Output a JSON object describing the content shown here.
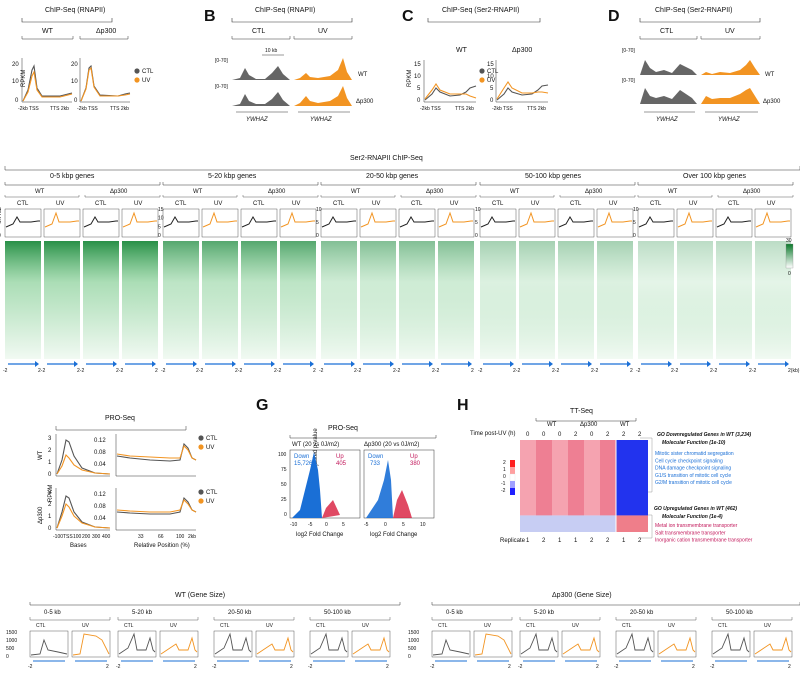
{
  "panels": {
    "B": "B",
    "C": "C",
    "D": "D",
    "G": "G",
    "H": "H"
  },
  "colors": {
    "ctl": "#555555",
    "uv": "#f29422",
    "heat": "#2e9a4c",
    "down": "#1a6fd6",
    "up": "#d81b3c",
    "go_blue": "#1a6fd6",
    "go_red": "#c2185b"
  },
  "panelA": {
    "title": "ChIP-Seq  (RNAPII)",
    "wt": "WT",
    "dp300": "Δp300",
    "ylabel": "RPKM",
    "yticks": [
      "20",
      "10",
      "0"
    ],
    "yticks2": [
      "20",
      "10",
      "0"
    ],
    "xlab": "-2kb TSS",
    "xlab2": "TTS  2kb",
    "legend": [
      "CTL",
      "UV"
    ]
  },
  "panelB": {
    "title": "ChIP-Seq   (RNAPII)",
    "ctl": "CTL",
    "uv": "UV",
    "scale": "10 kb",
    "range": "[0-70]",
    "range2": "[0-70]",
    "wt": "WT",
    "dp300": "Δp300",
    "gene": "YWHAZ"
  },
  "panelC": {
    "title": "ChIP-Seq (Ser2-RNAPII)",
    "wt": "WT",
    "dp300": "Δp300",
    "ylabel": "RPKM",
    "yticks": [
      "15",
      "10",
      "5",
      "0"
    ],
    "yticks2": [
      "15",
      "10",
      "5",
      "0"
    ],
    "xlab": "-2kb TSS",
    "xlab2": "TTS  2kb",
    "legend": [
      "CTL",
      "UV"
    ]
  },
  "panelD": {
    "title": "ChIP-Seq  (Ser2-RNAPII)",
    "ctl": "CTL",
    "uv": "UV",
    "range": "[0-70]",
    "range2": "[0-70]",
    "wt": "WT",
    "dp300": "Δp300",
    "gene": "YWHAZ"
  },
  "panelE": {
    "title": "Ser2-RNAPII ChIP-Seq",
    "groups": [
      "0-5 kbp genes",
      "5-20 kbp genes",
      "20-50 kbp genes",
      "50-100 kbp genes",
      "Over 100 kbp genes"
    ],
    "wt": "WT",
    "dp300": "Δp300",
    "ctl": "CTL",
    "uv": "UV",
    "ylabel": "RPKM",
    "yticks": [
      [
        "8",
        "4",
        "0"
      ],
      [
        "15",
        "10",
        "5",
        "0"
      ],
      [
        "10",
        "5",
        "0"
      ],
      [
        "10",
        "5",
        "0"
      ],
      [
        "10",
        "5",
        "0"
      ]
    ],
    "colorbar": [
      "30",
      "0"
    ],
    "x_left": "-2",
    "x_right": "2",
    "x_pair": "2-2",
    "x_unit": "2(kb)"
  },
  "panelF": {
    "title": "PRO-Seq",
    "wt": "WT",
    "dp300": "Δp300",
    "ylabel": "RPKM",
    "yticks_l": [
      "3",
      "2",
      "1",
      "0"
    ],
    "yticks_l2": [
      "3",
      "2",
      "1",
      "0"
    ],
    "yticks_r": [
      "0.12",
      "0.08",
      "0.04"
    ],
    "yticks_r2": [
      "0.12",
      "0.08",
      "0.04"
    ],
    "xticks_l": [
      "-100",
      "TSS",
      "100",
      "200",
      "300",
      "400"
    ],
    "xticks_r": [
      "33",
      "66",
      "100",
      "2kb"
    ],
    "xlabel_l": "Bases",
    "xlabel_r": "Relative Position (%)",
    "legend": [
      "CTL",
      "UV"
    ]
  },
  "panelG": {
    "title": "PRO-Seq",
    "sub1": "WT (20 vs 0J/m2)",
    "sub2": "Δp300 (20 vs 0J/m2)",
    "down": "Down",
    "up": "Up",
    "wt_down": "15,726",
    "wt_up": "405",
    "dp_down": "733",
    "dp_up": "380",
    "ylabel": "-log10 Adjusted p-value",
    "yticks": [
      "100",
      "75",
      "50",
      "25",
      "0"
    ],
    "xticks1": [
      "-10",
      "-5",
      "0",
      "5"
    ],
    "xticks2": [
      "-5",
      "0",
      "5",
      "10"
    ],
    "xlabel": "log2 Fold Change"
  },
  "panelH": {
    "title": "TT-Seq",
    "wt": "WT",
    "dp300": "Δp300",
    "wt2": "WT",
    "time_label": "Time post-UV (h)",
    "times": [
      "0",
      "0",
      "0",
      "2",
      "0",
      "2",
      "2",
      "2"
    ],
    "rep_label": "Replicate",
    "reps": [
      "1",
      "2",
      "1",
      "1",
      "2",
      "2",
      "1",
      "2"
    ],
    "cbar": [
      "2",
      "1",
      "0",
      "-1",
      "-2"
    ],
    "go_down_title1": "GO Downregulated Genes in WT (3,234)",
    "go_down_title2": "Molecular Function (1e-10)",
    "go_down": [
      "Mitotic sister chromatid segregation",
      "Cell cycle checkpoint signaling",
      "DNA damage checkpoint signaling",
      "G1/S transition of mitotic cell cycle",
      "G2/M transition of mitotic cell cycle"
    ],
    "go_up_title1": "GO Upregulated Genes in WT (462)",
    "go_up_title2": "Molecular Function (1e-4)",
    "go_up": [
      "Metal ion transmembrane transporter",
      "Salt transmembrane transporter",
      "Inorganic cation transmembrane transporter"
    ]
  },
  "panelI": {
    "wt_title": "WT (Gene Size)",
    "dp_title": "Δp300 (Gene Size)",
    "groups": [
      "0-5 kb",
      "5-20 kb",
      "20-50 kb",
      "50-100 kb"
    ],
    "ctl": "CTL",
    "uv": "UV",
    "yticks": [
      "1500",
      "1000",
      "500",
      "0"
    ],
    "yticks2": [
      "1500",
      "1000",
      "500",
      "0"
    ],
    "x_left": "-2",
    "x_right": "2"
  }
}
